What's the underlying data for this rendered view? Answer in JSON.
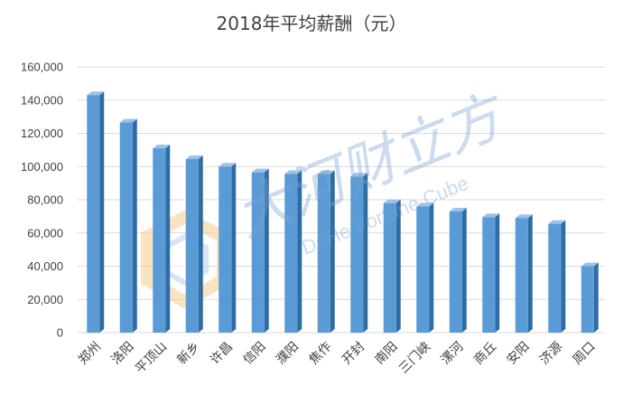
{
  "chart_data": {
    "type": "bar",
    "title": "2018年平均薪酬（元）",
    "categories": [
      "郑州",
      "洛阳",
      "平顶山",
      "新乡",
      "许昌",
      "信阳",
      "濮阳",
      "焦作",
      "开封",
      "南阳",
      "三门峡",
      "漯河",
      "商丘",
      "安阳",
      "济源",
      "周口"
    ],
    "values": [
      143000,
      126500,
      111000,
      104500,
      100000,
      96500,
      95500,
      95500,
      94000,
      78000,
      76000,
      73000,
      69500,
      69000,
      65500,
      40000
    ],
    "ylim": [
      0,
      160000
    ],
    "yticks": [
      "0",
      "20,000",
      "40,000",
      "60,000",
      "80,000",
      "100,000",
      "120,000",
      "140,000",
      "160,000"
    ],
    "grid": true,
    "legend": "none",
    "colors": {
      "bar_front": "#5b9bd5",
      "bar_side": "#2e6ca6",
      "bar_top": "#9cc3e6",
      "gridline": "#d9d9d9",
      "text": "#404040"
    }
  },
  "watermark": {
    "brand_cn": "大河财立方",
    "brand_en": "DaHe Fortune Cube",
    "logo_colors": [
      "#f5cf92",
      "#a9c5e5"
    ]
  }
}
